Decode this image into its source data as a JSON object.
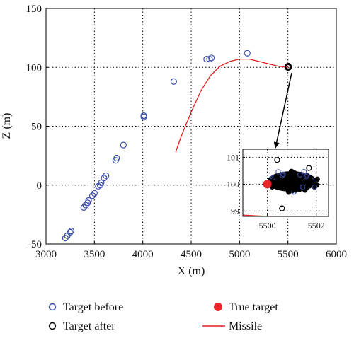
{
  "chart_data": {
    "type": "scatter",
    "title": "",
    "xlabel": "X (m)",
    "ylabel": "Z (m)",
    "xlim": [
      3000,
      6000
    ],
    "ylim": [
      -50,
      150
    ],
    "xticks": [
      3000,
      3500,
      4000,
      4500,
      5000,
      5500,
      6000
    ],
    "yticks": [
      -50,
      0,
      50,
      100,
      150
    ],
    "grid": "dotted",
    "colors": {
      "target_before": "#3b4fa8",
      "target_after": "#000000",
      "true_target": "#e8262a",
      "missile": "#e02020"
    },
    "series": [
      {
        "name": "Target before",
        "style": "hollow-circle",
        "points": [
          [
            3200,
            -45
          ],
          [
            3220,
            -43
          ],
          [
            3250,
            -40
          ],
          [
            3260,
            -39
          ],
          [
            3390,
            -19
          ],
          [
            3410,
            -17
          ],
          [
            3430,
            -15
          ],
          [
            3440,
            -13
          ],
          [
            3480,
            -9
          ],
          [
            3500,
            -7
          ],
          [
            3540,
            -1
          ],
          [
            3560,
            0
          ],
          [
            3570,
            2
          ],
          [
            3600,
            6
          ],
          [
            3620,
            8
          ],
          [
            3720,
            21
          ],
          [
            3730,
            23
          ],
          [
            3800,
            34
          ],
          [
            4010,
            58
          ],
          [
            4010,
            59
          ],
          [
            4320,
            88
          ],
          [
            4660,
            107
          ],
          [
            4690,
            107
          ],
          [
            4710,
            108
          ],
          [
            5080,
            112
          ],
          [
            5500,
            100
          ],
          [
            5505,
            101
          ]
        ]
      },
      {
        "name": "Target after",
        "style": "hollow-circle",
        "points": [
          [
            5500,
            100
          ],
          [
            5503,
            101
          ],
          [
            5505,
            100
          ]
        ]
      },
      {
        "name": "Missile",
        "style": "line",
        "points": [
          [
            4340,
            28
          ],
          [
            4400,
            42
          ],
          [
            4500,
            62
          ],
          [
            4600,
            80
          ],
          [
            4700,
            93
          ],
          [
            4800,
            101
          ],
          [
            4900,
            105
          ],
          [
            5000,
            107
          ],
          [
            5100,
            107
          ],
          [
            5200,
            105
          ],
          [
            5300,
            103
          ],
          [
            5400,
            101
          ],
          [
            5500,
            100
          ]
        ]
      },
      {
        "name": "True target",
        "style": "filled-circle",
        "points": [
          [
            5500,
            100
          ]
        ]
      }
    ],
    "inset": {
      "xlim": [
        5499,
        5502.5
      ],
      "ylim": [
        98.8,
        101.3
      ],
      "xticks": [
        5500,
        5502
      ],
      "yticks": [
        99,
        100,
        101
      ],
      "cloud_center": [
        5501,
        100.1
      ],
      "cloud_extent": [
        1.1,
        0.45
      ],
      "outliers": [
        [
          5500.6,
          99.1
        ],
        [
          5500.4,
          100.9
        ],
        [
          5501.7,
          100.6
        ]
      ],
      "true_target": [
        5500,
        100
      ],
      "missile": [
        [
          5499,
          98.85
        ],
        [
          5500,
          98.8
        ],
        [
          5501,
          98.78
        ],
        [
          5502,
          98.75
        ]
      ]
    },
    "legend": {
      "position": "bottom",
      "entries": [
        {
          "label": "Target before",
          "marker": "hollow-circle",
          "color": "#3b4fa8"
        },
        {
          "label": "True target",
          "marker": "filled-circle",
          "color": "#e8262a"
        },
        {
          "label": "Target after",
          "marker": "hollow-circle",
          "color": "#000000"
        },
        {
          "label": "Missile",
          "marker": "line",
          "color": "#e02020"
        }
      ]
    }
  }
}
